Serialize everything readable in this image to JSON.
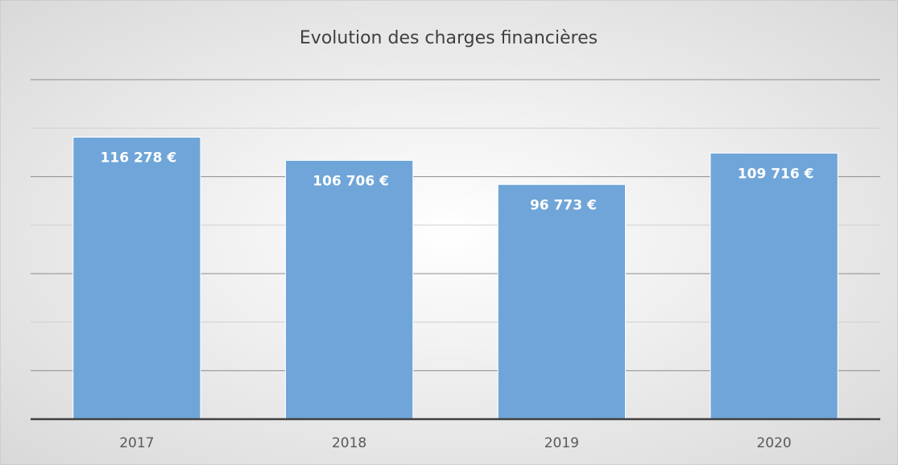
{
  "chart_data": {
    "type": "bar",
    "title": "Evolution des charges financières",
    "categories": [
      "2017",
      "2018",
      "2019",
      "2020"
    ],
    "values": [
      116278,
      106706,
      96773,
      109716
    ],
    "value_labels": [
      "116 278 €",
      "106 706 €",
      "96 773 €",
      "109 716 €"
    ],
    "color": "#6fa5d8",
    "ylim": [
      0,
      140000
    ],
    "yticks": [
      0,
      20000,
      40000,
      60000,
      80000,
      100000,
      120000,
      140000
    ],
    "grid": true
  }
}
